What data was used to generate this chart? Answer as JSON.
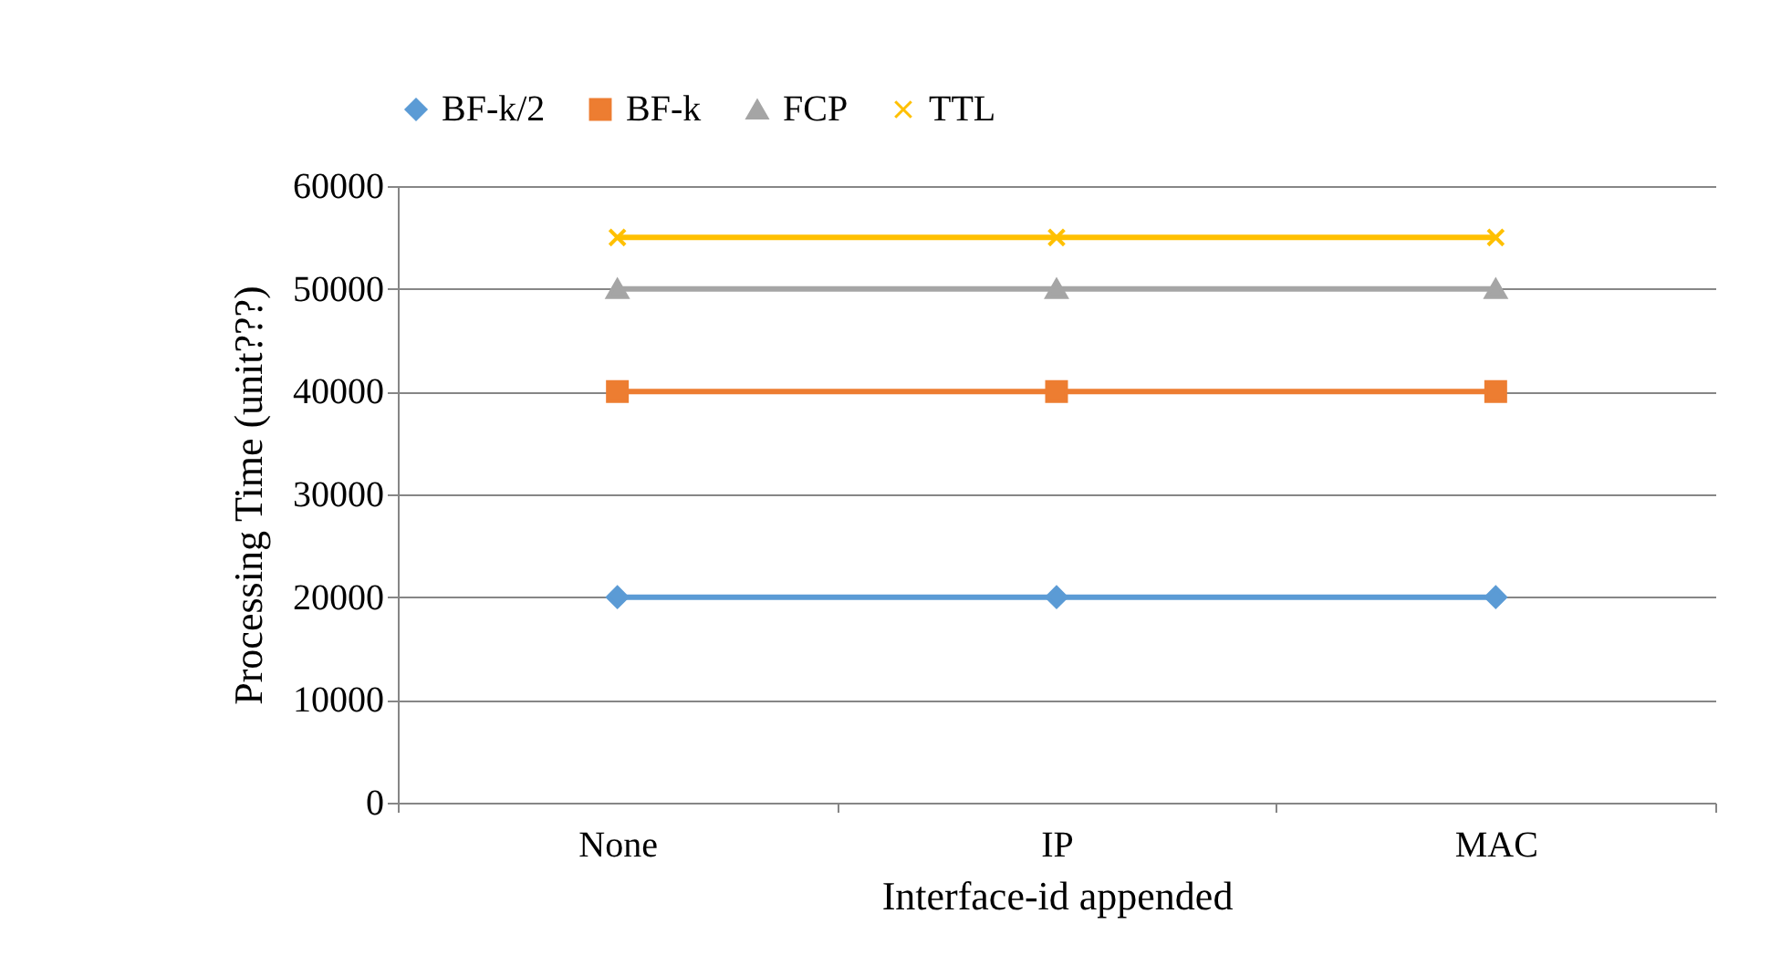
{
  "chart_data": {
    "type": "line",
    "xlabel": "Interface-id appended",
    "ylabel": "Processing Time (unit???)",
    "categories": [
      "None",
      "IP",
      "MAC"
    ],
    "series": [
      {
        "name": "BF-k/2",
        "color": "#5b9bd5",
        "marker": "diamond",
        "values": [
          20000,
          20000,
          20000
        ]
      },
      {
        "name": "BF-k",
        "color": "#ed7d31",
        "marker": "square",
        "values": [
          40000,
          40000,
          40000
        ]
      },
      {
        "name": "FCP",
        "color": "#a5a5a5",
        "marker": "triangle",
        "values": [
          50000,
          50000,
          50000
        ]
      },
      {
        "name": "TTL",
        "color": "#ffc000",
        "marker": "cross",
        "values": [
          55000,
          55000,
          55000
        ]
      }
    ],
    "ylim": [
      0,
      60000
    ],
    "yticks": [
      0,
      10000,
      20000,
      30000,
      40000,
      50000,
      60000
    ],
    "grid": "y",
    "legend": "top"
  }
}
